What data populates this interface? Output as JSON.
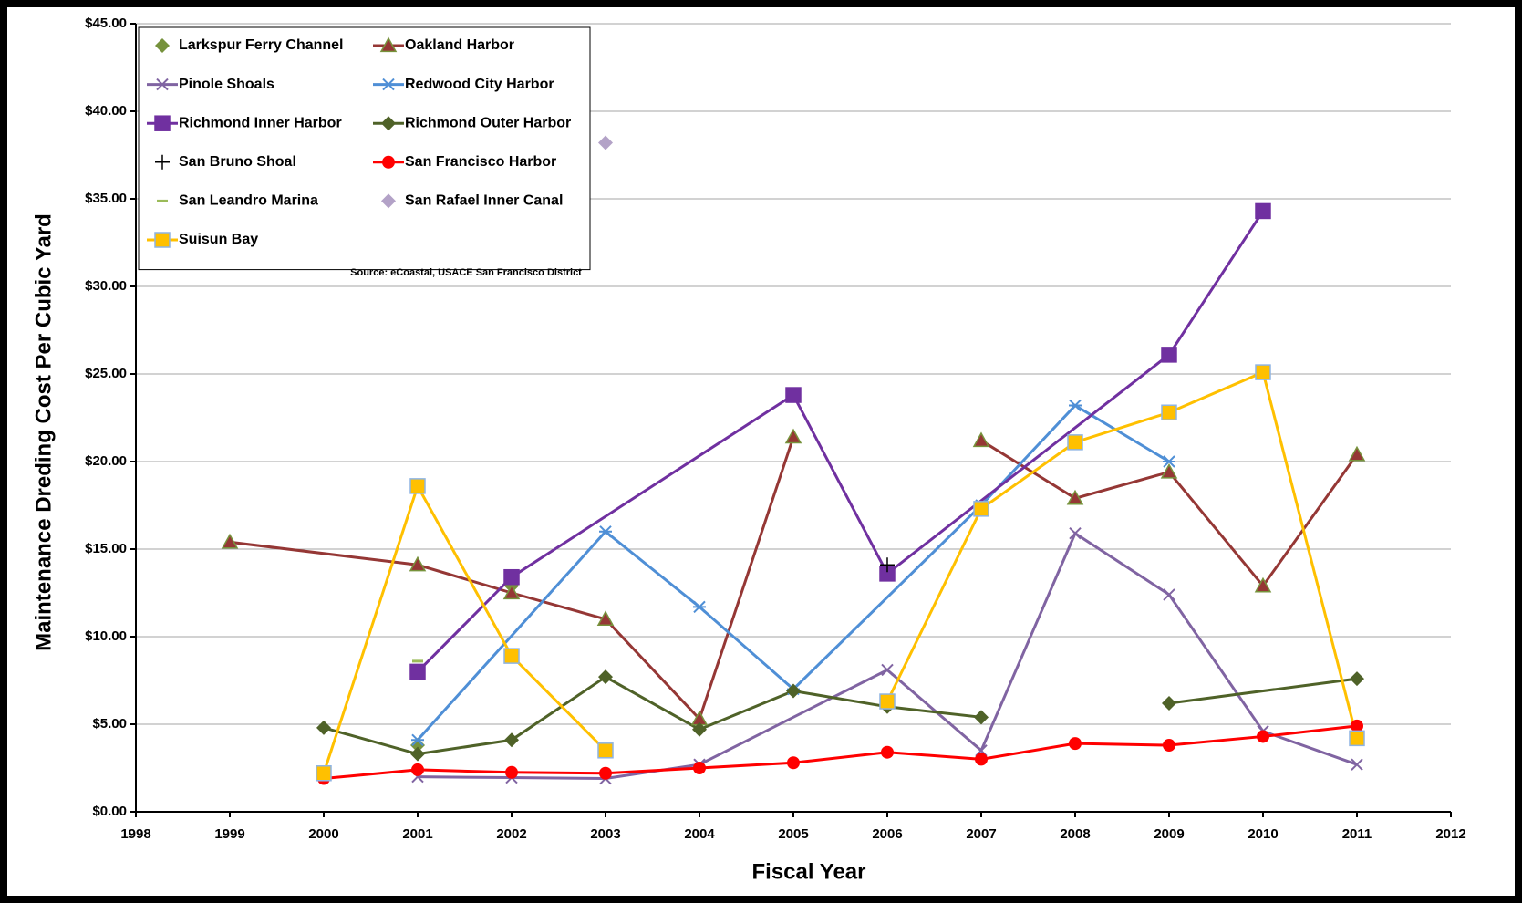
{
  "chart_data": {
    "type": "line",
    "y_label": "Maintenance Dreding Cost Per Cubic Yard",
    "x_label": "Fiscal Year",
    "source": "Source:  eCoastal, USACE  San Francisco District",
    "xlim": [
      1998,
      2012
    ],
    "xticks": [
      1998,
      1999,
      2000,
      2001,
      2002,
      2003,
      2004,
      2005,
      2006,
      2007,
      2008,
      2009,
      2010,
      2011,
      2012
    ],
    "ylim": [
      0,
      45
    ],
    "yticks": [
      {
        "value": 0,
        "label": "$0.00"
      },
      {
        "value": 5,
        "label": "$5.00"
      },
      {
        "value": 10,
        "label": "$10.00"
      },
      {
        "value": 15,
        "label": "$15.00"
      },
      {
        "value": 20,
        "label": "$20.00"
      },
      {
        "value": 25,
        "label": "$25.00"
      },
      {
        "value": 30,
        "label": "$30.00"
      },
      {
        "value": 35,
        "label": "$35.00"
      },
      {
        "value": 40,
        "label": "$40.00"
      },
      {
        "value": 45,
        "label": "$45.00"
      }
    ],
    "grid": true,
    "legend": "top-left",
    "series": [
      {
        "name": "Larkspur Ferry Channel",
        "color": "#76923c",
        "marker": "diamond",
        "line": false,
        "x": [
          2001,
          2002,
          2006
        ],
        "values": [
          3.8,
          12.9,
          6.1
        ]
      },
      {
        "name": "Oakland Harbor",
        "color": "#953735",
        "marker": "triangle",
        "line": true,
        "x": [
          1999,
          2001,
          2002,
          2003,
          2004,
          2005,
          2006,
          2007,
          2008,
          2009,
          2010,
          2011
        ],
        "values": [
          15.4,
          14.1,
          12.5,
          11.0,
          5.3,
          21.4,
          null,
          21.2,
          17.9,
          19.4,
          12.9,
          20.4
        ]
      },
      {
        "name": "Pinole Shoals",
        "color": "#8064a2",
        "marker": "x",
        "line": true,
        "x": [
          2001,
          2002,
          2003,
          2004,
          2006,
          2007,
          2008,
          2009,
          2010,
          2011
        ],
        "values": [
          2.0,
          1.95,
          1.9,
          2.7,
          8.1,
          3.5,
          15.9,
          12.4,
          4.6,
          2.7
        ]
      },
      {
        "name": "Redwood City Harbor",
        "color": "#4f8fd6",
        "marker": "star",
        "line": true,
        "x": [
          2001,
          2003,
          2004,
          2005,
          2007,
          2008,
          2009
        ],
        "values": [
          4.1,
          16.0,
          11.7,
          7.0,
          17.5,
          23.2,
          20.0
        ]
      },
      {
        "name": "Richmond Inner Harbor",
        "color": "#7030a0",
        "marker": "square",
        "line": true,
        "x": [
          2001,
          2002,
          2005,
          2006,
          2009,
          2010
        ],
        "values": [
          8.0,
          13.4,
          23.8,
          13.6,
          26.1,
          34.3
        ]
      },
      {
        "name": "Richmond Outer Harbor",
        "color": "#4f6228",
        "marker": "diamond",
        "line": true,
        "x": [
          2000,
          2001,
          2002,
          2003,
          2004,
          2005,
          2006,
          2007,
          2008,
          2009,
          2011
        ],
        "values": [
          4.8,
          3.3,
          4.1,
          7.7,
          4.7,
          6.9,
          6.0,
          5.4,
          null,
          6.2,
          7.6
        ]
      },
      {
        "name": "San Bruno Shoal",
        "color": "#000000",
        "marker": "plus",
        "line": false,
        "x": [
          2006
        ],
        "values": [
          14.1
        ]
      },
      {
        "name": "San Francisco Harbor",
        "color": "#ff0000",
        "marker": "circle",
        "line": true,
        "x": [
          2000,
          2001,
          2002,
          2003,
          2004,
          2005,
          2006,
          2007,
          2008,
          2009,
          2010,
          2011
        ],
        "values": [
          1.9,
          2.4,
          2.25,
          2.2,
          2.5,
          2.8,
          3.4,
          3.0,
          3.9,
          3.8,
          4.3,
          4.9
        ]
      },
      {
        "name": "San Leandro Marina",
        "color": "#9bbb59",
        "marker": "dash",
        "line": false,
        "x": [
          2001
        ],
        "values": [
          8.6
        ]
      },
      {
        "name": "San Rafael Inner Canal",
        "color": "#b3a2c7",
        "marker": "diamond",
        "line": false,
        "x": [
          2003
        ],
        "values": [
          38.2
        ]
      },
      {
        "name": "Suisun Bay",
        "color": "#ffc000",
        "marker": "square",
        "line": true,
        "x": [
          2000,
          2001,
          2002,
          2003,
          2004,
          2006,
          2007,
          2008,
          2009,
          2010,
          2011
        ],
        "values": [
          2.2,
          18.6,
          8.9,
          3.5,
          null,
          6.3,
          17.3,
          21.1,
          22.8,
          25.1,
          4.2
        ]
      }
    ]
  }
}
